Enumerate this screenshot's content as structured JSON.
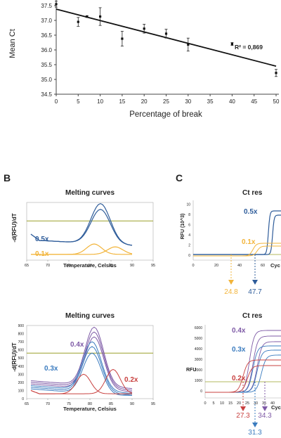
{
  "panel_labels": {
    "B": "B",
    "C": "C"
  },
  "chart_data": [
    {
      "id": "regression",
      "type": "scatter",
      "xlabel": "Percentage of break",
      "ylabel": "Mean Ct",
      "xlim": [
        0,
        50
      ],
      "ylim": [
        34.5,
        37.5
      ],
      "x_ticks": [
        "0",
        "5",
        "10",
        "15",
        "20",
        "25",
        "30",
        "35",
        "40",
        "45",
        "50"
      ],
      "y_ticks": [
        "34.5",
        "35.0",
        "35.5",
        "36.0",
        "36.5",
        "37.0",
        "37.5"
      ],
      "points": [
        {
          "x": 0,
          "y": 37.55,
          "err": 0.1
        },
        {
          "x": 5,
          "y": 36.95,
          "err": 0.15
        },
        {
          "x": 7,
          "y": 37.13,
          "err": 0.03
        },
        {
          "x": 10,
          "y": 37.13,
          "err": 0.3
        },
        {
          "x": 15,
          "y": 36.38,
          "err": 0.25
        },
        {
          "x": 20,
          "y": 36.72,
          "err": 0.15
        },
        {
          "x": 25,
          "y": 36.55,
          "err": 0.15
        },
        {
          "x": 30,
          "y": 36.18,
          "err": 0.22
        },
        {
          "x": 40,
          "y": 36.2,
          "err": 0.05
        },
        {
          "x": 50,
          "y": 35.22,
          "err": 0.12
        }
      ],
      "fit": {
        "x": [
          0,
          50
        ],
        "y": [
          37.38,
          35.45
        ]
      },
      "annotation": "R² = 0,869",
      "grid": false
    },
    {
      "id": "melt-top",
      "type": "line",
      "title": "Melting curves",
      "xlabel": "Temperature, Celsius",
      "ylabel": "-d(RFU)/dT",
      "xlim": [
        65,
        95
      ],
      "x_ticks": [
        "65",
        "70",
        "75",
        "80",
        "85",
        "90",
        "95"
      ],
      "threshold_level": 0.68,
      "series_labels": [
        {
          "text": "0.5x",
          "color": "#2e5c9a"
        },
        {
          "text": "0.1x",
          "color": "#f2b43a"
        }
      ],
      "series": [
        {
          "color": "#2e5c9a",
          "peak_x": 82.5,
          "peak_level": 0.98
        },
        {
          "color": "#2e5c9a",
          "peak_x": 82.5,
          "peak_level": 0.88
        },
        {
          "color": "#f2b43a",
          "peak_x": 81.0,
          "peak_level": 0.28
        },
        {
          "color": "#f2b43a",
          "peak_x": 86.0,
          "peak_level": 0.23
        }
      ]
    },
    {
      "id": "melt-bottom",
      "type": "line",
      "title": "Melting curves",
      "xlabel": "Temperature, Celsius",
      "ylabel": "-d(RFU)/dT",
      "xlim": [
        65,
        95
      ],
      "ylim": [
        0,
        900
      ],
      "x_ticks": [
        "65",
        "70",
        "75",
        "80",
        "85",
        "90",
        "95"
      ],
      "y_ticks": [
        "0",
        "50",
        "100",
        "150",
        "200",
        "250",
        "300",
        "350",
        "400",
        "450",
        "500",
        "550",
        "600",
        "650",
        "700",
        "750",
        "800",
        "850",
        "900"
      ],
      "threshold": 560,
      "series_labels": [
        {
          "text": "0.4x",
          "color": "#7e5aa6"
        },
        {
          "text": "0.3x",
          "color": "#3a7bbf"
        },
        {
          "text": "0.2x",
          "color": "#c8403f"
        }
      ],
      "series": [
        {
          "color": "#7e5aa6",
          "peak_x": 81,
          "peak": 880
        },
        {
          "color": "#7e5aa6",
          "peak_x": 81,
          "peak": 820
        },
        {
          "color": "#7e5aa6",
          "peak_x": 81,
          "peak": 760
        },
        {
          "color": "#3a7bbf",
          "peak_x": 80.5,
          "peak": 700
        },
        {
          "color": "#3a7bbf",
          "peak_x": 80.5,
          "peak": 640
        },
        {
          "color": "#3a7bbf",
          "peak_x": 80.5,
          "peak": 560
        },
        {
          "color": "#c8403f",
          "peak_x": 78.5,
          "peak": 300
        },
        {
          "color": "#c8403f",
          "peak_x": 85.5,
          "peak": 360
        }
      ]
    },
    {
      "id": "ct-top",
      "type": "line",
      "title": "Ct res",
      "xlabel": "Cyc",
      "ylabel": "RFU (10^3)",
      "x_ticks": [
        "0",
        "20",
        "40",
        "60"
      ],
      "y_ticks": [
        "0",
        "2",
        "4",
        "6",
        "8",
        "10"
      ],
      "series_labels": [
        {
          "text": "0.5x",
          "color": "#2e5c9a"
        },
        {
          "text": "0.1x",
          "color": "#f2b43a"
        }
      ],
      "ct_values": [
        {
          "text": "24.8",
          "color": "#f2b43a"
        },
        {
          "text": "47.7",
          "color": "#2e5c9a"
        }
      ]
    },
    {
      "id": "ct-bottom",
      "type": "line",
      "title": "Ct res",
      "xlabel": "Cyc",
      "ylabel": "RFU",
      "x_ticks": [
        "0",
        "5",
        "10",
        "15",
        "20",
        "25",
        "30",
        "35",
        "40"
      ],
      "y_ticks": [
        "0",
        "1000",
        "2000",
        "3000",
        "4000",
        "5000",
        "6000"
      ],
      "series_labels": [
        {
          "text": "0.4x",
          "color": "#7e5aa6"
        },
        {
          "text": "0.3x",
          "color": "#3a7bbf"
        },
        {
          "text": "0.2x",
          "color": "#c8403f"
        }
      ],
      "ct_values": [
        {
          "text": "27.3",
          "color": "#c8403f"
        },
        {
          "text": "34.3",
          "color": "#7e5aa6"
        },
        {
          "text": "31.3",
          "color": "#3a7bbf"
        }
      ]
    }
  ]
}
